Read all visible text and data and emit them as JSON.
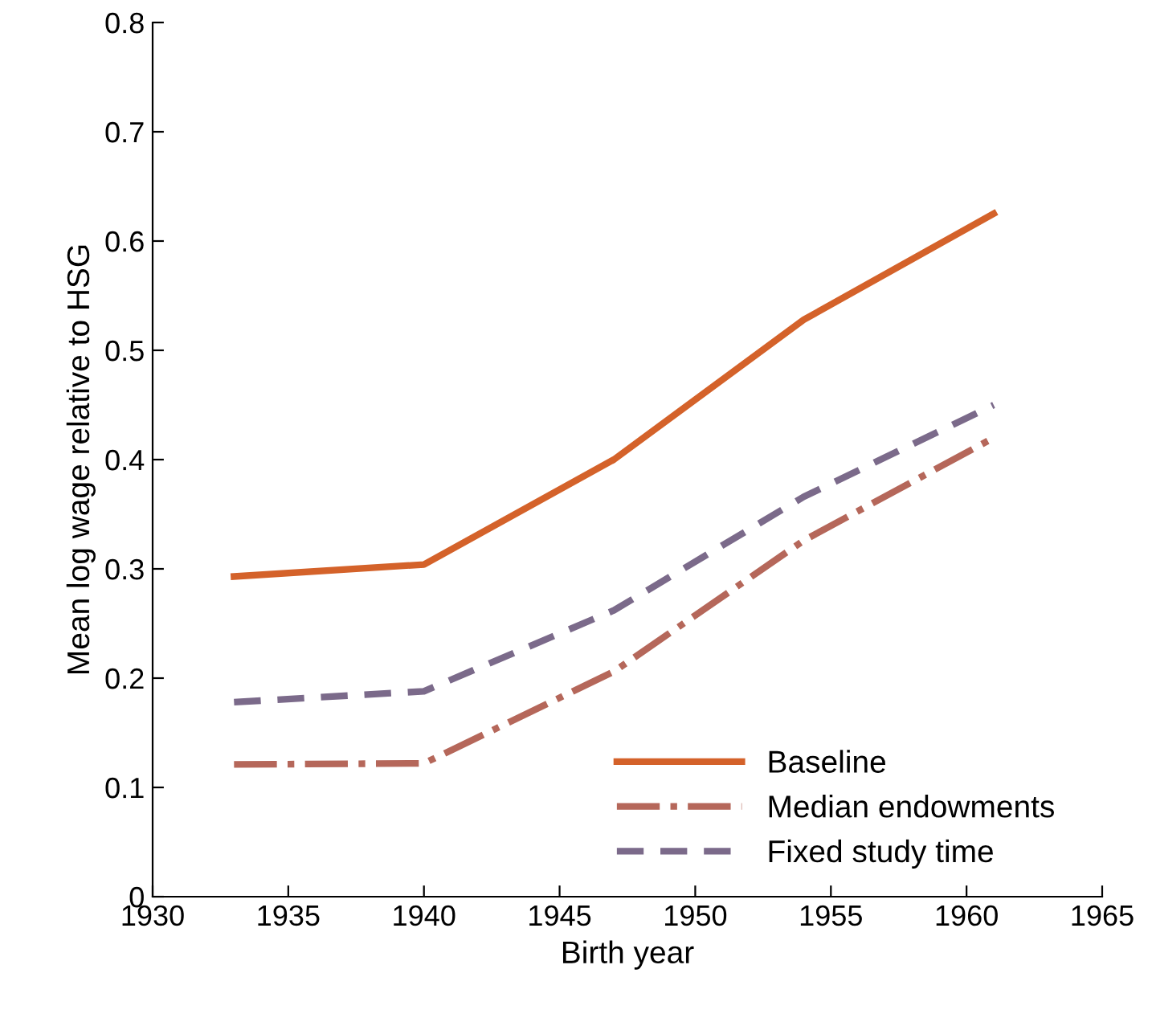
{
  "chart_data": {
    "type": "line",
    "xlabel": "Birth year",
    "ylabel": "Mean log wage relative to HSG",
    "x": [
      1933,
      1940,
      1947,
      1954,
      1961
    ],
    "series": [
      {
        "name": "Baseline",
        "color": "#d4622a",
        "line_style": "solid",
        "values": [
          0.293,
          0.304,
          0.4,
          0.528,
          0.625
        ]
      },
      {
        "name": "Median endowments",
        "color": "#b5675a",
        "line_style": "dashdot",
        "values": [
          0.121,
          0.122,
          0.206,
          0.326,
          0.42
        ]
      },
      {
        "name": "Fixed study time",
        "color": "#7b6a8a",
        "line_style": "dashed",
        "values": [
          0.178,
          0.188,
          0.262,
          0.366,
          0.45
        ]
      }
    ],
    "xlim": [
      1930,
      1965
    ],
    "xticks": [
      1930,
      1935,
      1940,
      1945,
      1950,
      1955,
      1960,
      1965
    ],
    "ylim": [
      0,
      0.8
    ],
    "yticks": [
      0,
      0.1,
      0.2,
      0.3,
      0.4,
      0.5,
      0.6,
      0.7,
      0.8
    ],
    "grid": false,
    "legend": "bottom right",
    "marker": "none"
  }
}
